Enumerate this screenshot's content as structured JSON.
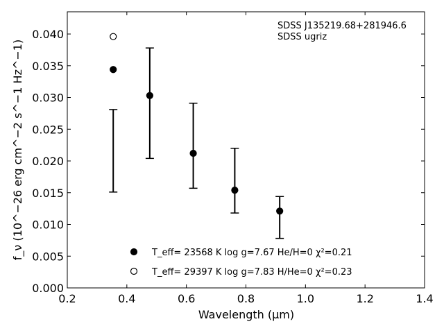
{
  "chart_data": {
    "type": "scatter",
    "annotation": [
      "SDSS J135219.68+281946.6",
      "SDSS ugriz"
    ],
    "xlabel": "Wavelength (μm)",
    "ylabel": "f_ν (10^−26 erg cm^−2 s^−1 Hz^−1)",
    "xlim": [
      0.2,
      1.4
    ],
    "ylim": [
      0.0,
      0.0435
    ],
    "xticks": [
      "0.2",
      "0.4",
      "0.6",
      "0.8",
      "1.0",
      "1.2",
      "1.4"
    ],
    "yticks": [
      "0.000",
      "0.005",
      "0.010",
      "0.015",
      "0.020",
      "0.025",
      "0.030",
      "0.035",
      "0.040"
    ],
    "grid": false,
    "legend_position": "bottom-center",
    "observed": {
      "x": [
        0.3543,
        0.477,
        0.6231,
        0.7625,
        0.9134
      ],
      "y": [
        0.0216,
        0.0291,
        0.0224,
        0.0169,
        0.0111
      ],
      "yerr": [
        0.0065,
        0.0087,
        0.0067,
        0.0051,
        0.0033
      ]
    },
    "series": [
      {
        "name": "T_eff= 23568 K  log g=7.67  He/H=0  χ²=0.21",
        "marker": "filled-circle",
        "x": [
          0.3543,
          0.477,
          0.6231,
          0.7625,
          0.9134
        ],
        "y": [
          0.0344,
          0.0303,
          0.0212,
          0.0154,
          0.0121
        ]
      },
      {
        "name": "T_eff= 29397 K  log g=7.83  H/He=0  χ²=0.23",
        "marker": "open-circle",
        "x": [
          0.3543
        ],
        "y": [
          0.0396
        ]
      }
    ]
  }
}
